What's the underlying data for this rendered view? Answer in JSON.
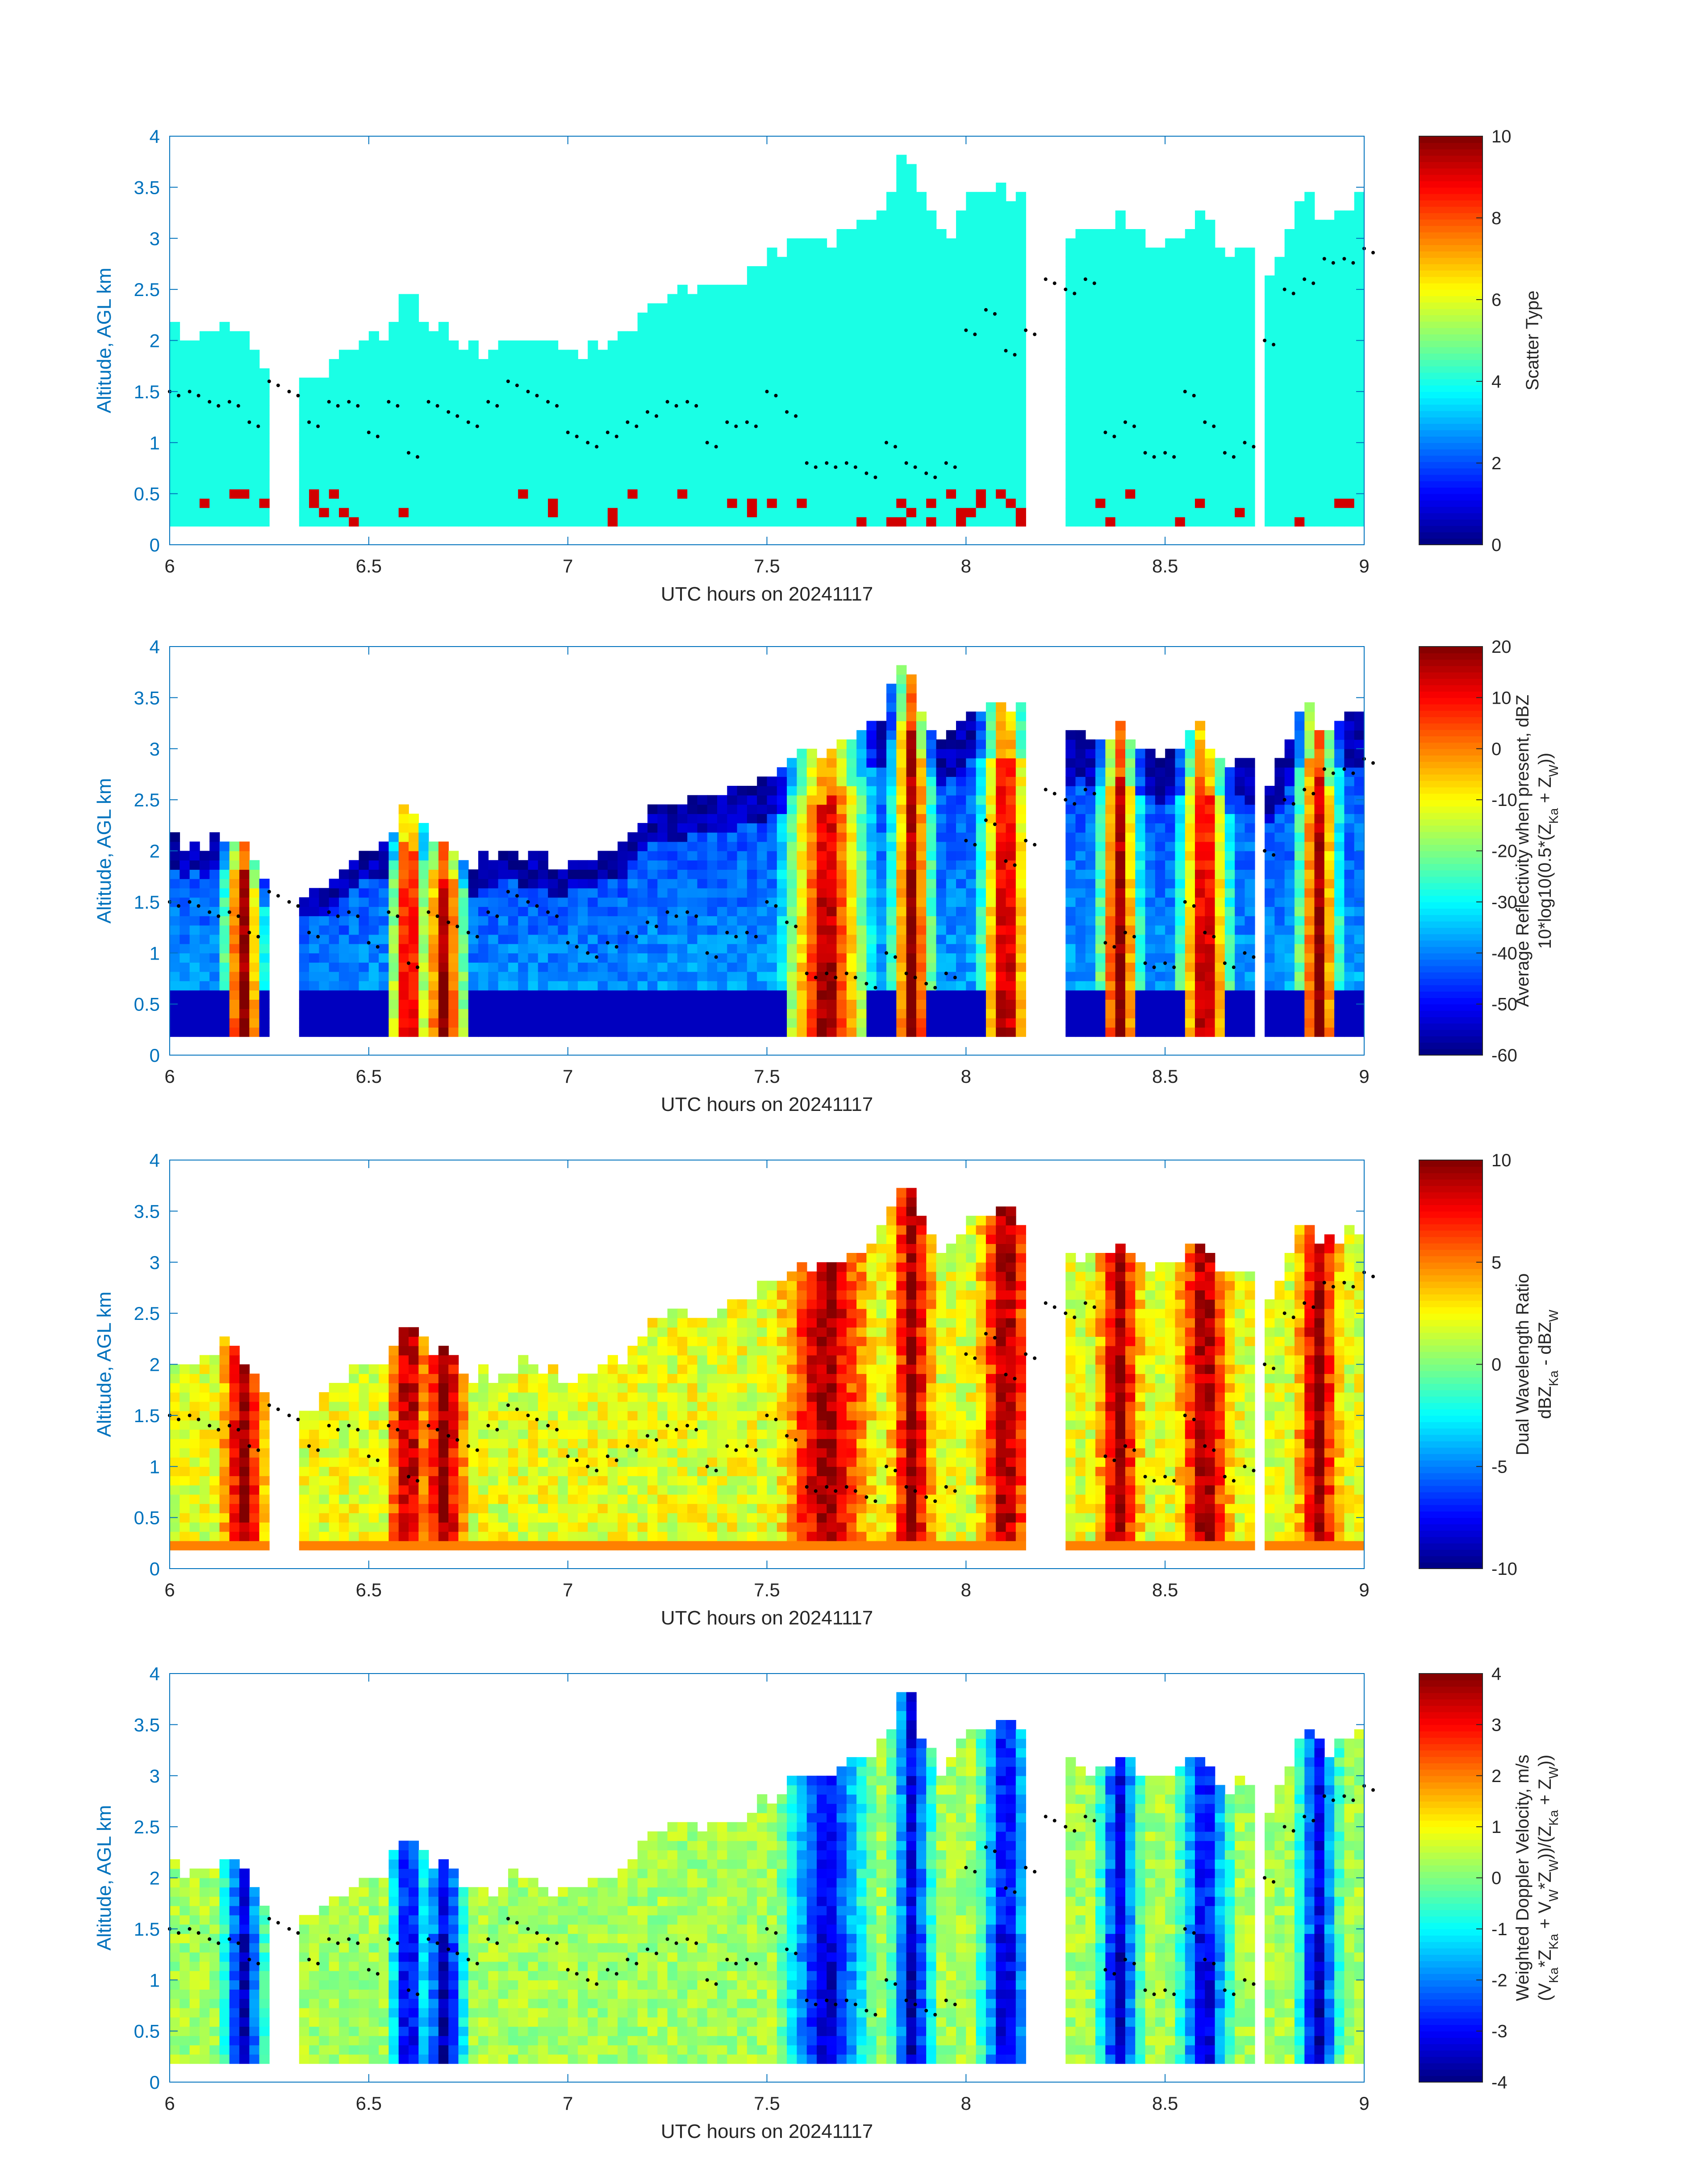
{
  "chart_data": [
    {
      "type": "heatmap",
      "x_range": [
        6,
        9
      ],
      "y_range": [
        0,
        4
      ],
      "x_ticks": [
        "6",
        "6.5",
        "7",
        "7.5",
        "8",
        "8.5",
        "9"
      ],
      "y_ticks": [
        "0",
        "0.5",
        "1",
        "1.5",
        "2",
        "2.5",
        "3",
        "3.5",
        "4"
      ],
      "xlabel": "UTC hours on 20241117",
      "ylabel": "Altitude, AGL km",
      "colorbar": {
        "label_line1": "Scatter Type",
        "label_line2": "",
        "range": [
          0,
          10
        ],
        "ticks": [
          "0",
          "2",
          "4",
          "6",
          "8",
          "10"
        ]
      },
      "grid": false
    },
    {
      "type": "heatmap",
      "x_range": [
        6,
        9
      ],
      "y_range": [
        0,
        4
      ],
      "x_ticks": [
        "6",
        "6.5",
        "7",
        "7.5",
        "8",
        "8.5",
        "9"
      ],
      "y_ticks": [
        "0",
        "0.5",
        "1",
        "1.5",
        "2",
        "2.5",
        "3",
        "3.5",
        "4"
      ],
      "xlabel": "UTC hours on 20241117",
      "ylabel": "Altitude, AGL km",
      "colorbar": {
        "label_line1": "Average Reflectivity when present, dBZ",
        "label_line2": "10*log10(0.5*(Z_Ka + Z_W))",
        "range": [
          -60,
          20
        ],
        "ticks": [
          "-60",
          "-50",
          "-40",
          "-30",
          "-20",
          "-10",
          "0",
          "10",
          "20"
        ]
      },
      "grid": false
    },
    {
      "type": "heatmap",
      "x_range": [
        6,
        9
      ],
      "y_range": [
        0,
        4
      ],
      "x_ticks": [
        "6",
        "6.5",
        "7",
        "7.5",
        "8",
        "8.5",
        "9"
      ],
      "y_ticks": [
        "0",
        "0.5",
        "1",
        "1.5",
        "2",
        "2.5",
        "3",
        "3.5",
        "4"
      ],
      "xlabel": "UTC hours on 20241117",
      "ylabel": "Altitude, AGL km",
      "colorbar": {
        "label_line1": "Dual Wavelength Ratio",
        "label_line2": "dBZ_Ka - dBZ_W",
        "range": [
          -10,
          10
        ],
        "ticks": [
          "-10",
          "-5",
          "0",
          "5",
          "10"
        ]
      },
      "grid": false
    },
    {
      "type": "heatmap",
      "x_range": [
        6,
        9
      ],
      "y_range": [
        0,
        4
      ],
      "x_ticks": [
        "6",
        "6.5",
        "7",
        "7.5",
        "8",
        "8.5",
        "9"
      ],
      "y_ticks": [
        "0",
        "0.5",
        "1",
        "1.5",
        "2",
        "2.5",
        "3",
        "3.5",
        "4"
      ],
      "xlabel": "UTC hours on 20241117",
      "ylabel": "Altitude, AGL km",
      "colorbar": {
        "label_line1": "Weighted Doppler Velocity, m/s",
        "label_line2": "(V_Ka*Z_Ka + V_W*Z_W))/(Z_Ka + Z_W))",
        "range": [
          -4,
          4
        ],
        "ticks": [
          "-4",
          "-3",
          "-2",
          "-1",
          "0",
          "1",
          "2",
          "3",
          "4"
        ]
      },
      "grid": false
    }
  ],
  "cloud_profile": {
    "hours": [
      6.0,
      6.05,
      6.1,
      6.15,
      6.2,
      6.25,
      6.3,
      6.35,
      6.4,
      6.45,
      6.5,
      6.55,
      6.6,
      6.65,
      6.7,
      6.75,
      6.8,
      6.85,
      6.9,
      6.95,
      7.0,
      7.05,
      7.1,
      7.15,
      7.2,
      7.25,
      7.3,
      7.35,
      7.4,
      7.45,
      7.5,
      7.55,
      7.6,
      7.65,
      7.7,
      7.75,
      7.8,
      7.85,
      7.9,
      7.95,
      8.0,
      8.05,
      8.1,
      8.15,
      8.2,
      8.25,
      8.3,
      8.35,
      8.4,
      8.45,
      8.5,
      8.55,
      8.6,
      8.65,
      8.7,
      8.75,
      8.8,
      8.85,
      8.9,
      8.95,
      9.0
    ],
    "top_km": [
      2.1,
      2.0,
      2.1,
      2.2,
      2.0,
      1.6,
      1.7,
      1.6,
      1.7,
      1.9,
      2.0,
      2.1,
      2.5,
      2.1,
      2.1,
      1.9,
      1.9,
      2.0,
      2.0,
      1.9,
      1.9,
      1.9,
      2.0,
      2.1,
      2.4,
      2.5,
      2.5,
      2.5,
      2.6,
      2.6,
      2.8,
      2.9,
      3.0,
      3.0,
      3.1,
      3.2,
      3.4,
      3.9,
      3.3,
      3.0,
      3.4,
      3.5,
      3.5,
      3.4,
      3.3,
      3.1,
      3.1,
      3.1,
      3.2,
      3.0,
      3.0,
      3.1,
      3.2,
      2.8,
      3.0,
      2.5,
      3.0,
      3.5,
      3.2,
      3.3,
      3.4
    ],
    "gap_hours": [
      [
        6.26,
        6.33
      ],
      [
        8.16,
        8.26
      ],
      [
        8.73,
        8.76
      ]
    ],
    "dots_km": [
      1.5,
      1.5,
      1.4,
      1.4,
      1.2,
      1.6,
      1.5,
      1.2,
      1.4,
      1.4,
      1.1,
      1.4,
      0.9,
      1.4,
      1.3,
      1.2,
      1.4,
      1.6,
      1.5,
      1.4,
      1.1,
      1.0,
      1.1,
      1.2,
      1.3,
      1.4,
      1.4,
      1.0,
      1.2,
      1.2,
      1.5,
      1.3,
      0.8,
      0.8,
      0.8,
      0.7,
      1.0,
      0.8,
      0.7,
      0.8,
      2.1,
      2.3,
      1.9,
      2.1,
      2.6,
      2.5,
      2.6,
      1.1,
      1.2,
      0.9,
      0.9,
      1.5,
      1.2,
      0.9,
      1.0,
      2.0,
      2.5,
      2.6,
      2.8,
      2.8,
      2.9
    ]
  }
}
